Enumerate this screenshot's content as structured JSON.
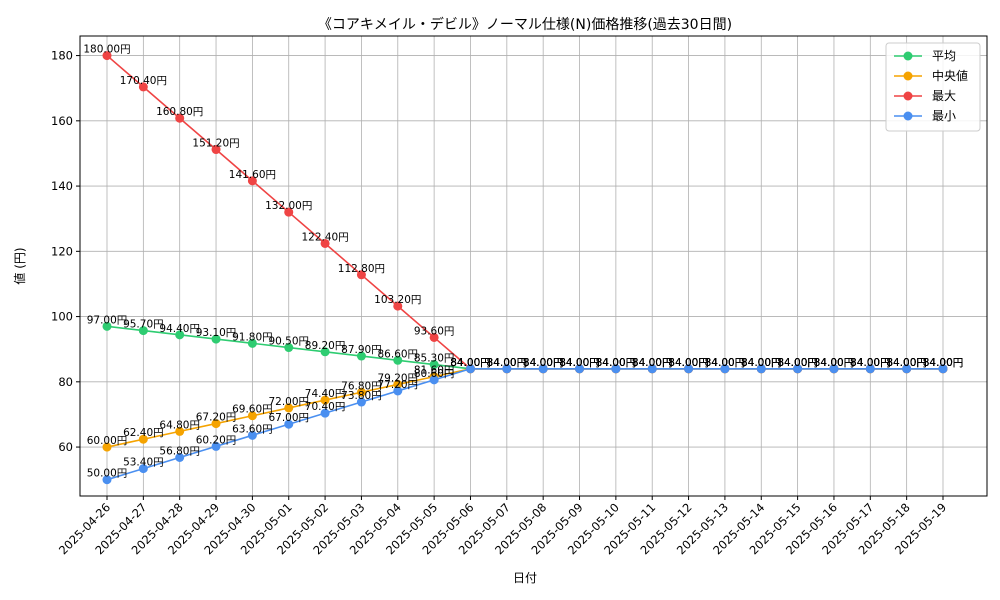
{
  "chart_data": {
    "type": "line",
    "title": "《コアキメイル・デビル》ノーマル仕様(N)価格推移(過去30日間)",
    "xlabel": "日付",
    "ylabel": "値 (円)",
    "ylim": [
      45,
      186
    ],
    "yticks": [
      60,
      80,
      100,
      120,
      140,
      160,
      180
    ],
    "grid": true,
    "legend_position": "top-right",
    "categories": [
      "2025-04-26",
      "2025-04-27",
      "2025-04-28",
      "2025-04-29",
      "2025-04-30",
      "2025-05-01",
      "2025-05-02",
      "2025-05-03",
      "2025-05-04",
      "2025-05-05",
      "2025-05-06",
      "2025-05-07",
      "2025-05-08",
      "2025-05-09",
      "2025-05-10",
      "2025-05-11",
      "2025-05-12",
      "2025-05-13",
      "2025-05-14",
      "2025-05-15",
      "2025-05-16",
      "2025-05-17",
      "2025-05-18",
      "2025-05-19"
    ],
    "series": [
      {
        "name": "平均",
        "color": "#2ecc71",
        "values": [
          97.0,
          95.7,
          94.4,
          93.1,
          91.8,
          90.5,
          89.2,
          87.9,
          86.6,
          85.3,
          84,
          84,
          84,
          84,
          84,
          84,
          84,
          84,
          84,
          84,
          84,
          84,
          84,
          84
        ],
        "labels": [
          "97.00円",
          "95.70円",
          "94.40円",
          "93.10円",
          "91.80円",
          "90.50円",
          "89.20円",
          "87.90円",
          "86.60円",
          "85.30円",
          "84.00円",
          "84.00円",
          "84.00円",
          "84.00円",
          "84.00円",
          "84.00円",
          "84.00円",
          "84.00円",
          "84.00円",
          "84.00円",
          "84.00円",
          "84.00円",
          "84.00円",
          "84.00円"
        ]
      },
      {
        "name": "中央値",
        "color": "#f5a300",
        "values": [
          60.0,
          62.4,
          64.8,
          67.2,
          69.6,
          72.0,
          74.4,
          76.8,
          79.2,
          81.6,
          84,
          84,
          84,
          84,
          84,
          84,
          84,
          84,
          84,
          84,
          84,
          84,
          84,
          84
        ],
        "labels": [
          "60.00円",
          "62.40円",
          "64.80円",
          "67.20円",
          "69.60円",
          "72.00円",
          "74.40円",
          "76.80円",
          "79.20円",
          "81.60円",
          "84.00円",
          "84.00円",
          "84.00円",
          "84.00円",
          "84.00円",
          "84.00円",
          "84.00円",
          "84.00円",
          "84.00円",
          "84.00円",
          "84.00円",
          "84.00円",
          "84.00円",
          "84.00円"
        ]
      },
      {
        "name": "最大",
        "color": "#ef4444",
        "values": [
          180.0,
          170.4,
          160.8,
          151.2,
          141.6,
          132.0,
          122.4,
          112.8,
          103.2,
          93.6,
          84,
          84,
          84,
          84,
          84,
          84,
          84,
          84,
          84,
          84,
          84,
          84,
          84,
          84
        ],
        "labels": [
          "180.00円",
          "170.40円",
          "160.80円",
          "151.20円",
          "141.60円",
          "132.00円",
          "122.40円",
          "112.80円",
          "103.20円",
          "93.60円",
          "84.00円",
          "84.00円",
          "84.00円",
          "84.00円",
          "84.00円",
          "84.00円",
          "84.00円",
          "84.00円",
          "84.00円",
          "84.00円",
          "84.00円",
          "84.00円",
          "84.00円",
          "84.00円"
        ]
      },
      {
        "name": "最小",
        "color": "#4a8ff0",
        "values": [
          50.0,
          53.4,
          56.8,
          60.2,
          63.6,
          67.0,
          70.4,
          73.8,
          77.2,
          80.6,
          84,
          84,
          84,
          84,
          84,
          84,
          84,
          84,
          84,
          84,
          84,
          84,
          84,
          84
        ],
        "labels": [
          "50.00円",
          "53.40円",
          "56.80円",
          "60.20円",
          "63.60円",
          "67.00円",
          "70.40円",
          "73.80円",
          "77.20円",
          "80.60円",
          "84.00円",
          "84.00円",
          "84.00円",
          "84.00円",
          "84.00円",
          "84.00円",
          "84.00円",
          "84.00円",
          "84.00円",
          "84.00円",
          "84.00円",
          "84.00円",
          "84.00円",
          "84.00円"
        ]
      }
    ]
  }
}
